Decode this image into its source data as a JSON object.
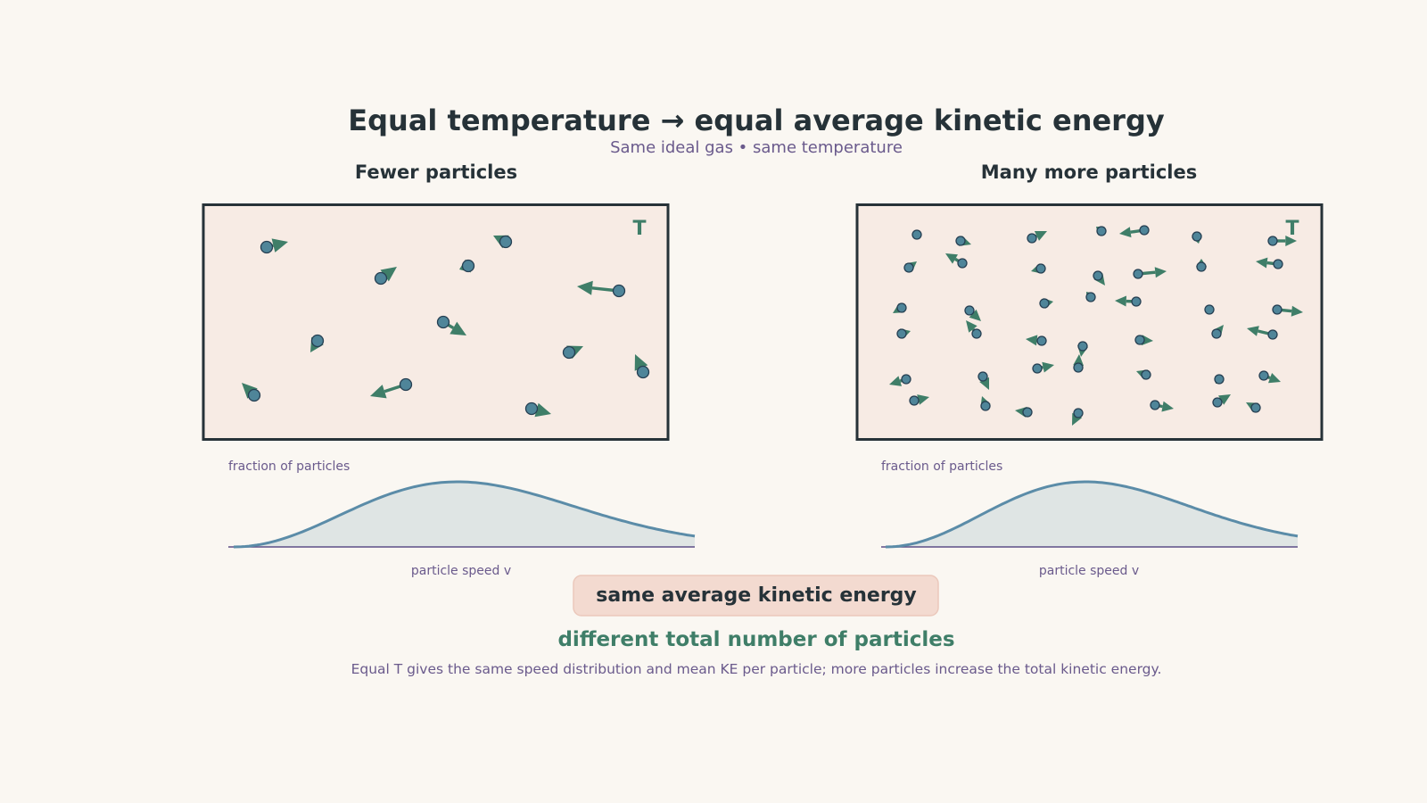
{
  "title": "Equal temperature → equal average kinetic energy",
  "subtitle": "Same ideal gas • same temperature",
  "colors": {
    "particle": "#4f8599",
    "arrow": "#3f7e68",
    "box_fill": "#f7ebe4",
    "curve": "#5b8ca8",
    "accent_text": "#6a5a8c"
  },
  "panels": [
    {
      "title": "Fewer particles",
      "temp_label": "T",
      "y_label": "fraction of particles",
      "x_label": "particle speed  v"
    },
    {
      "title": "Many more particles",
      "temp_label": "T",
      "y_label": "fraction of particles",
      "x_label": "particle speed  v"
    }
  ],
  "callout": "same average kinetic energy",
  "difference": "different total number of particles",
  "footnote": "Equal T gives the same speed distribution and mean KE per particle; more particles increase the total kinetic energy."
}
